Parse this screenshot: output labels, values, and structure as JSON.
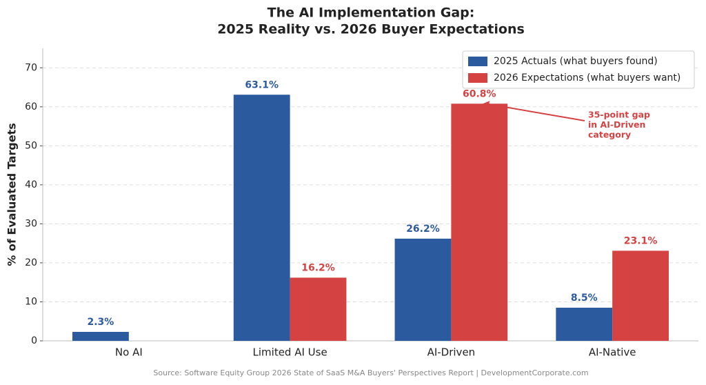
{
  "chart_data": {
    "type": "bar",
    "title": [
      "The AI Implementation Gap:",
      "2025 Reality vs. 2026 Buyer Expectations"
    ],
    "ylabel": "% of Evaluated Targets",
    "categories": [
      "No AI",
      "Limited AI Use",
      "AI-Driven",
      "AI-Native"
    ],
    "series": [
      {
        "name": "2025 Actuals (what buyers found)",
        "color": "#2b5a9e",
        "values": [
          2.3,
          63.1,
          26.2,
          8.5
        ],
        "value_labels": [
          "2.3%",
          "63.1%",
          "26.2%",
          "8.5%"
        ]
      },
      {
        "name": "2026 Expectations (what buyers want)",
        "color": "#d44242",
        "values": [
          null,
          16.2,
          60.8,
          23.1
        ],
        "value_labels": [
          null,
          "16.2%",
          "60.8%",
          "23.1%"
        ]
      }
    ],
    "ylim": [
      0,
      75
    ],
    "yticks": [
      0,
      10,
      20,
      30,
      40,
      50,
      60,
      70
    ],
    "grid": true,
    "legend": "upper right",
    "annotation": {
      "lines": [
        "35-point gap",
        "in AI-Driven",
        "category"
      ],
      "color": "#d44242"
    },
    "source": "Source: Software Equity Group 2026 State of SaaS M&A Buyers' Perspectives Report | DevelopmentCorporate.com"
  }
}
